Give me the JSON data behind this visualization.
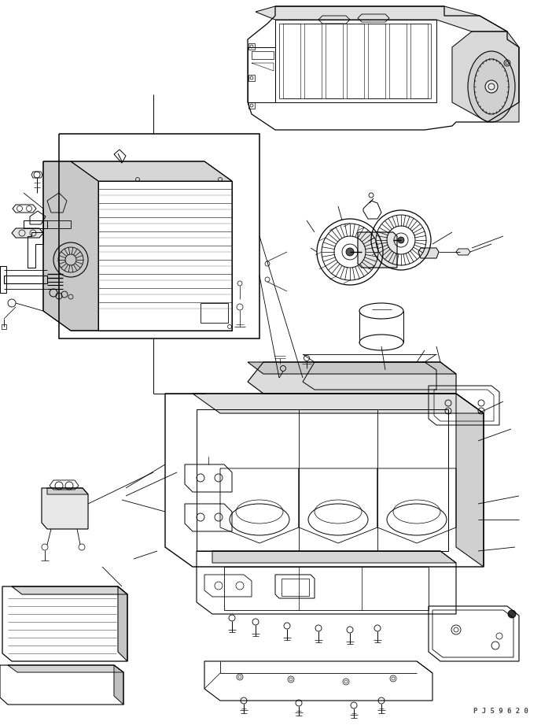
{
  "background_color": "#ffffff",
  "line_color": "#000000",
  "fig_width": 6.88,
  "fig_height": 9.21,
  "dpi": 100,
  "watermark_text": "P J 5 9 6 2 0",
  "watermark_fontsize": 6.5
}
